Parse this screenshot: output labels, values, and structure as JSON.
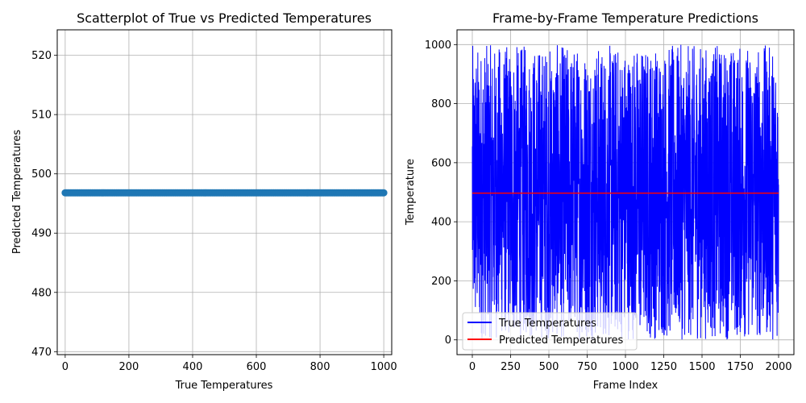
{
  "chart_data": [
    {
      "type": "scatter",
      "title": "Scatterplot of True vs Predicted Temperatures",
      "xlabel": "True Temperatures",
      "ylabel": "Predicted Temperatures",
      "xlim": [
        -25,
        1025
      ],
      "ylim": [
        469.5,
        524.3
      ],
      "xticks": [
        0,
        200,
        400,
        600,
        800,
        1000
      ],
      "yticks": [
        470,
        480,
        490,
        500,
        510,
        520
      ],
      "grid": true,
      "color": "#1f77b4",
      "points": {
        "x_start": 0,
        "x_end": 1000,
        "count": 250,
        "y": 496.8
      }
    },
    {
      "type": "line",
      "title": "Frame-by-Frame Temperature Predictions",
      "xlabel": "Frame Index",
      "ylabel": "Temperature",
      "xlim": [
        -100,
        2100
      ],
      "ylim": [
        -50,
        1050
      ],
      "xticks": [
        0,
        250,
        500,
        750,
        1000,
        1250,
        1500,
        1750,
        2000
      ],
      "yticks": [
        0,
        200,
        400,
        600,
        800,
        1000
      ],
      "grid": true,
      "legend_position": "lower-left",
      "series": [
        {
          "name": "True Temperatures",
          "color": "#0000ff",
          "frames": 2000,
          "min": 0,
          "max": 1000
        },
        {
          "name": "Predicted Temperatures",
          "color": "#ff0000",
          "value": 496.8
        }
      ]
    }
  ]
}
